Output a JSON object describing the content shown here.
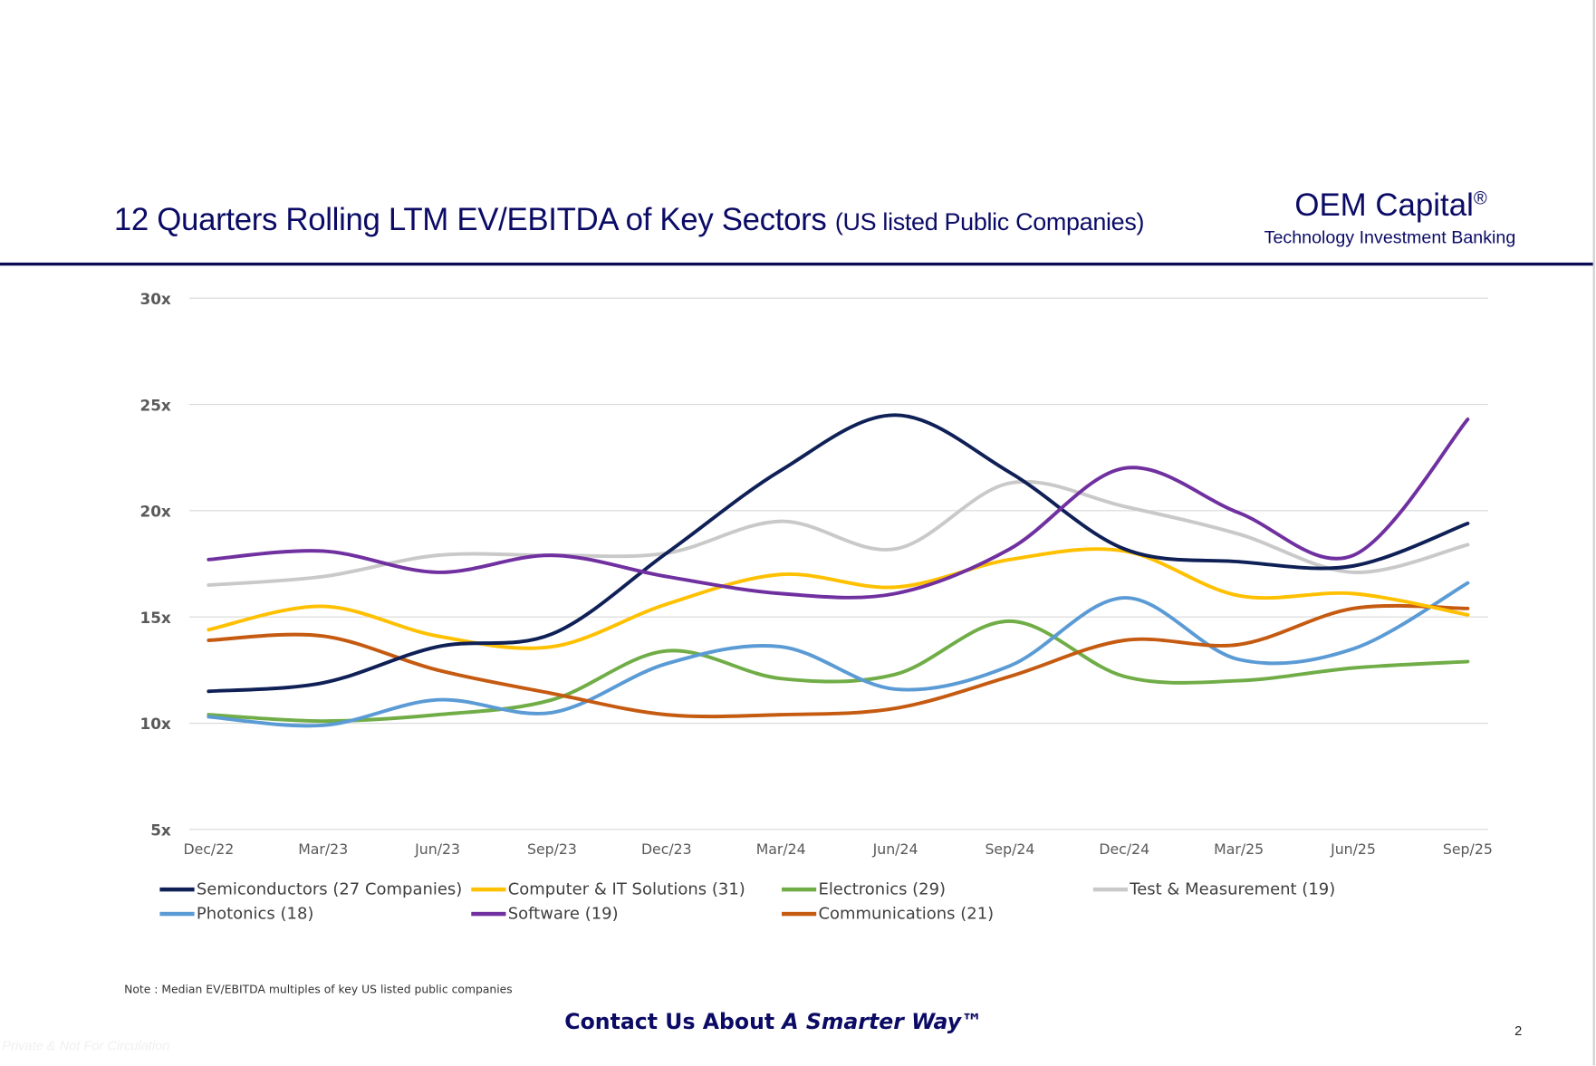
{
  "header": {
    "title": "12 Quarters Rolling LTM EV/EBITDA of Key Sectors",
    "subtitle": "(US listed Public Companies)",
    "brand": "OEM Capital",
    "brand_mark": "®",
    "tagline": "Technology Investment Banking"
  },
  "chart_data": {
    "type": "line",
    "smooth": true,
    "categories": [
      "Dec/22",
      "Mar/23",
      "Jun/23",
      "Sep/23",
      "Dec/23",
      "Mar/24",
      "Jun/24",
      "Sep/24",
      "Dec/24",
      "Mar/25",
      "Jun/25",
      "Sep/25"
    ],
    "yticks": [
      "5x",
      "10x",
      "15x",
      "20x",
      "25x",
      "30x"
    ],
    "ylim": [
      5,
      30
    ],
    "grid": true,
    "legend_position": "bottom",
    "series": [
      {
        "name": "Semiconductors (27 Companies)",
        "color": "#0f2057",
        "values": [
          11.5,
          11.9,
          13.6,
          14.2,
          18.0,
          21.9,
          24.5,
          21.8,
          18.2,
          17.6,
          17.4,
          19.4
        ]
      },
      {
        "name": "Computer & IT Solutions (31)",
        "color": "#ffc000",
        "values": [
          14.4,
          15.5,
          14.1,
          13.6,
          15.6,
          17.0,
          16.4,
          17.7,
          18.1,
          16.0,
          16.1,
          15.1
        ]
      },
      {
        "name": "Electronics (29)",
        "color": "#70ad47",
        "values": [
          10.4,
          10.1,
          10.4,
          11.1,
          13.4,
          12.1,
          12.3,
          14.8,
          12.2,
          12.0,
          12.6,
          12.9
        ]
      },
      {
        "name": "Test & Measurement (19)",
        "color": "#c9c9c9",
        "values": [
          16.5,
          16.9,
          17.9,
          17.9,
          18.0,
          19.5,
          18.2,
          21.3,
          20.2,
          18.9,
          17.1,
          18.4
        ]
      },
      {
        "name": "Photonics (18)",
        "color": "#5b9bd5",
        "values": [
          10.3,
          9.9,
          11.1,
          10.5,
          12.8,
          13.6,
          11.6,
          12.7,
          15.9,
          13.0,
          13.5,
          16.6
        ]
      },
      {
        "name": "Software (19)",
        "color": "#7030a0",
        "values": [
          17.7,
          18.1,
          17.1,
          17.9,
          16.9,
          16.1,
          16.1,
          18.2,
          22.0,
          19.9,
          17.9,
          24.3
        ]
      },
      {
        "name": "Communications (21)",
        "color": "#c55a11",
        "values": [
          13.9,
          14.1,
          12.5,
          11.4,
          10.4,
          10.4,
          10.7,
          12.2,
          13.9,
          13.7,
          15.4,
          15.4
        ]
      }
    ]
  },
  "note": "Note : Median EV/EBITDA multiples of key US listed public companies",
  "footer": {
    "prefix": "Contact Us About ",
    "emphasis": "A Smarter Way™"
  },
  "page_number": "2",
  "watermark": "Private & Not For Circulation"
}
